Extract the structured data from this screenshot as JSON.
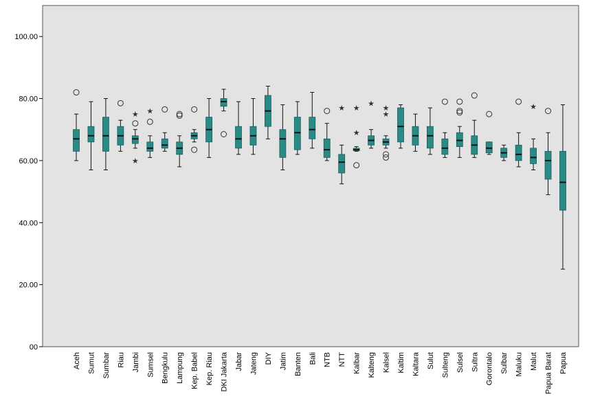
{
  "chart_data": {
    "type": "boxplot",
    "title": "",
    "xlabel": "",
    "ylabel": "",
    "ylim": [
      0,
      110
    ],
    "yticks": [
      "00",
      "20.00",
      "40.00",
      "60.00",
      "80.00",
      "100.00"
    ],
    "ytick_values": [
      0,
      20,
      40,
      60,
      80,
      100
    ],
    "grid": false,
    "colors": {
      "plot_bg": "#e3e3e3",
      "box_fill": "#2a8a86",
      "median": "#111111",
      "axis": "#000000"
    },
    "categories": [
      "Aceh",
      "Sumut",
      "Sumbar",
      "Riau",
      "Jambi",
      "Sumsel",
      "Bengkulu",
      "Lampung",
      "Kep. Babel",
      "Kep. Riau",
      "DKI Jakarta",
      "Jabar",
      "Jateng",
      "DIY",
      "Jatim",
      "Banten",
      "Bali",
      "NTB",
      "NTT",
      "Kalbar",
      "Kalteng",
      "Kalsel",
      "Kaltim",
      "Kaltara",
      "Sulut",
      "Sulteng",
      "Sulsel",
      "Sultra",
      "Gorontalo",
      "Sulbar",
      "Maluku",
      "Malut",
      "Papua Barat",
      "Papua"
    ],
    "series": [
      {
        "values": [
          {
            "min": 60,
            "q1": 63,
            "median": 67,
            "q3": 70,
            "max": 75,
            "outliers": [
              {
                "y": 82,
                "mark": "circle"
              }
            ]
          },
          {
            "min": 57,
            "q1": 66,
            "median": 68,
            "q3": 71,
            "max": 79,
            "outliers": []
          },
          {
            "min": 57,
            "q1": 63,
            "median": 68,
            "q3": 74,
            "max": 80,
            "outliers": []
          },
          {
            "min": 63,
            "q1": 65,
            "median": 68,
            "q3": 71,
            "max": 73,
            "outliers": [
              {
                "y": 78.5,
                "mark": "circle"
              }
            ]
          },
          {
            "min": 64,
            "q1": 65.5,
            "median": 67,
            "q3": 68,
            "max": 70,
            "outliers": [
              {
                "y": 75,
                "mark": "star"
              },
              {
                "y": 72,
                "mark": "circle"
              },
              {
                "y": 60,
                "mark": "star"
              }
            ]
          },
          {
            "min": 61,
            "q1": 63,
            "median": 64,
            "q3": 66,
            "max": 68,
            "outliers": [
              {
                "y": 76,
                "mark": "star"
              },
              {
                "y": 72.5,
                "mark": "circle"
              }
            ]
          },
          {
            "min": 63,
            "q1": 64,
            "median": 65,
            "q3": 67,
            "max": 69,
            "outliers": [
              {
                "y": 76.5,
                "mark": "circle"
              }
            ]
          },
          {
            "min": 58,
            "q1": 62,
            "median": 64,
            "q3": 66,
            "max": 68,
            "outliers": [
              {
                "y": 75,
                "mark": "circle"
              },
              {
                "y": 74.5,
                "mark": "circle"
              }
            ]
          },
          {
            "min": 66,
            "q1": 67,
            "median": 68,
            "q3": 69,
            "max": 70,
            "outliers": [
              {
                "y": 76.5,
                "mark": "circle"
              },
              {
                "y": 63.5,
                "mark": "circle"
              }
            ]
          },
          {
            "min": 61,
            "q1": 66,
            "median": 70,
            "q3": 74,
            "max": 80,
            "outliers": []
          },
          {
            "min": 76,
            "q1": 77.5,
            "median": 79,
            "q3": 80,
            "max": 83,
            "outliers": [
              {
                "y": 68.5,
                "mark": "circle"
              }
            ]
          },
          {
            "min": 62,
            "q1": 64,
            "median": 67,
            "q3": 71,
            "max": 79,
            "outliers": []
          },
          {
            "min": 62,
            "q1": 65,
            "median": 68,
            "q3": 71,
            "max": 80,
            "outliers": []
          },
          {
            "min": 67,
            "q1": 71,
            "median": 76,
            "q3": 81,
            "max": 84,
            "outliers": []
          },
          {
            "min": 57,
            "q1": 61,
            "median": 67,
            "q3": 70,
            "max": 78,
            "outliers": []
          },
          {
            "min": 62,
            "q1": 63.5,
            "median": 69,
            "q3": 74,
            "max": 79,
            "outliers": []
          },
          {
            "min": 64,
            "q1": 67,
            "median": 70,
            "q3": 74,
            "max": 82,
            "outliers": []
          },
          {
            "min": 60,
            "q1": 61,
            "median": 63.5,
            "q3": 67,
            "max": 72,
            "outliers": [
              {
                "y": 76,
                "mark": "circle"
              }
            ]
          },
          {
            "min": 52.5,
            "q1": 56,
            "median": 59.5,
            "q3": 62,
            "max": 65,
            "outliers": [
              {
                "y": 77,
                "mark": "star"
              }
            ]
          },
          {
            "min": 63,
            "q1": 63.2,
            "median": 63.5,
            "q3": 64,
            "max": 64.5,
            "outliers": [
              {
                "y": 77,
                "mark": "star"
              },
              {
                "y": 69,
                "mark": "star"
              },
              {
                "y": 58.5,
                "mark": "circle"
              }
            ]
          },
          {
            "min": 64,
            "q1": 65,
            "median": 66.5,
            "q3": 68,
            "max": 70,
            "outliers": [
              {
                "y": 78.5,
                "mark": "star"
              }
            ]
          },
          {
            "min": 64,
            "q1": 65,
            "median": 66,
            "q3": 67,
            "max": 68,
            "outliers": [
              {
                "y": 77,
                "mark": "star"
              },
              {
                "y": 75,
                "mark": "star"
              },
              {
                "y": 62,
                "mark": "circle"
              },
              {
                "y": 61,
                "mark": "circle"
              }
            ]
          },
          {
            "min": 64,
            "q1": 66,
            "median": 71,
            "q3": 77,
            "max": 78,
            "outliers": []
          },
          {
            "min": 63,
            "q1": 65,
            "median": 68,
            "q3": 71,
            "max": 75,
            "outliers": []
          },
          {
            "min": 62,
            "q1": 64,
            "median": 68,
            "q3": 71,
            "max": 77,
            "outliers": []
          },
          {
            "min": 61,
            "q1": 62,
            "median": 64,
            "q3": 67,
            "max": 69,
            "outliers": [
              {
                "y": 79,
                "mark": "circle"
              }
            ]
          },
          {
            "min": 61,
            "q1": 64.5,
            "median": 66.5,
            "q3": 69,
            "max": 71,
            "outliers": [
              {
                "y": 79,
                "mark": "circle"
              },
              {
                "y": 76,
                "mark": "circle"
              },
              {
                "y": 75.5,
                "mark": "circle"
              }
            ]
          },
          {
            "min": 61,
            "q1": 62,
            "median": 65,
            "q3": 68,
            "max": 73,
            "outliers": [
              {
                "y": 81,
                "mark": "circle"
              }
            ]
          },
          {
            "min": 62,
            "q1": 62.5,
            "median": 64,
            "q3": 66,
            "max": 66,
            "outliers": [
              {
                "y": 75,
                "mark": "circle"
              }
            ]
          },
          {
            "min": 60,
            "q1": 61,
            "median": 62.5,
            "q3": 64,
            "max": 65,
            "outliers": []
          },
          {
            "min": 58,
            "q1": 60,
            "median": 62,
            "q3": 65,
            "max": 69,
            "outliers": [
              {
                "y": 79,
                "mark": "circle"
              }
            ]
          },
          {
            "min": 57,
            "q1": 59,
            "median": 61,
            "q3": 64,
            "max": 67,
            "outliers": [
              {
                "y": 77.5,
                "mark": "star"
              }
            ]
          },
          {
            "min": 49,
            "q1": 54,
            "median": 60,
            "q3": 63,
            "max": 69,
            "outliers": [
              {
                "y": 76,
                "mark": "circle"
              }
            ]
          },
          {
            "min": 25,
            "q1": 44,
            "median": 53,
            "q3": 63,
            "max": 78,
            "outliers": []
          }
        ]
      }
    ]
  }
}
